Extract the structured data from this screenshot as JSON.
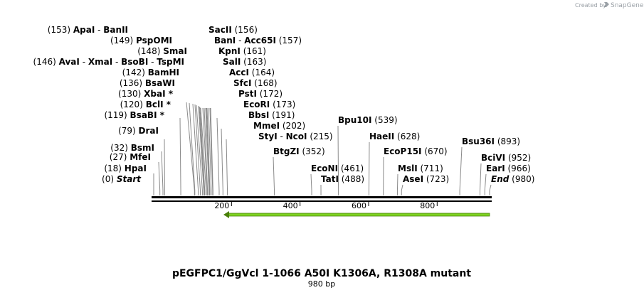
{
  "credit": {
    "prefix": "Created by",
    "brand": "SnapGene"
  },
  "title": "pEGFPC1/GgVcl 1-1066 A50I K1306A, R1308A mutant",
  "length_label": "980 bp",
  "sequence_length": 980,
  "ticks": [
    {
      "pos": 200,
      "label": "200"
    },
    {
      "pos": 400,
      "label": "400"
    },
    {
      "pos": 600,
      "label": "600"
    },
    {
      "pos": 800,
      "label": "800"
    }
  ],
  "feature": {
    "name": "green-arrow-feature",
    "start": 205,
    "end": 975,
    "direction": "reverse",
    "color": "#7ed321"
  },
  "sites": [
    {
      "names": [
        "ApaI",
        "BanII"
      ],
      "pos": "153",
      "numbers_left": true
    },
    {
      "names": [
        "PspOMI"
      ],
      "pos": "149",
      "numbers_left": true
    },
    {
      "names": [
        "SmaI"
      ],
      "pos": "148",
      "numbers_left": true
    },
    {
      "names": [
        "AvaI",
        "XmaI",
        "BsoBI",
        "TspMI"
      ],
      "pos": "146",
      "numbers_left": true
    },
    {
      "names": [
        "BamHI"
      ],
      "pos": "142",
      "numbers_left": true
    },
    {
      "names": [
        "BsaWI"
      ],
      "pos": "136",
      "numbers_left": true
    },
    {
      "names": [
        "XbaI *"
      ],
      "pos": "130",
      "numbers_left": true
    },
    {
      "names": [
        "BclI *"
      ],
      "pos": "120",
      "numbers_left": true
    },
    {
      "names": [
        "BsaBI *"
      ],
      "pos": "119",
      "numbers_left": true
    },
    {
      "names": [
        "DraI"
      ],
      "pos": "79",
      "numbers_left": true
    },
    {
      "names": [
        "BsmI"
      ],
      "pos": "32",
      "numbers_left": true
    },
    {
      "names": [
        "MfeI"
      ],
      "pos": "27",
      "numbers_left": true
    },
    {
      "names": [
        "HpaI"
      ],
      "pos": "18",
      "numbers_left": true
    },
    {
      "names": [
        "Start"
      ],
      "pos": "0",
      "numbers_left": true,
      "italic": true
    },
    {
      "names": [
        "SacII"
      ],
      "pos": "156",
      "numbers_left": false
    },
    {
      "names": [
        "BanI",
        "Acc65I"
      ],
      "pos": "157",
      "numbers_left": false
    },
    {
      "names": [
        "KpnI"
      ],
      "pos": "161",
      "numbers_left": false
    },
    {
      "names": [
        "SalI"
      ],
      "pos": "163",
      "numbers_left": false
    },
    {
      "names": [
        "AccI"
      ],
      "pos": "164",
      "numbers_left": false
    },
    {
      "names": [
        "SfcI"
      ],
      "pos": "168",
      "numbers_left": false
    },
    {
      "names": [
        "PstI"
      ],
      "pos": "172",
      "numbers_left": false
    },
    {
      "names": [
        "EcoRI"
      ],
      "pos": "173",
      "numbers_left": false
    },
    {
      "names": [
        "BbsI"
      ],
      "pos": "191",
      "numbers_left": false
    },
    {
      "names": [
        "MmeI"
      ],
      "pos": "202",
      "numbers_left": false
    },
    {
      "names": [
        "StyI",
        "NcoI"
      ],
      "pos": "215",
      "numbers_left": false
    },
    {
      "names": [
        "BtgZI"
      ],
      "pos": "352",
      "numbers_left": false
    },
    {
      "names": [
        "EcoNI"
      ],
      "pos": "461",
      "numbers_left": false
    },
    {
      "names": [
        "TatI"
      ],
      "pos": "488",
      "numbers_left": false
    },
    {
      "names": [
        "Bpu10I"
      ],
      "pos": "539",
      "numbers_left": false
    },
    {
      "names": [
        "HaeII"
      ],
      "pos": "628",
      "numbers_left": false
    },
    {
      "names": [
        "EcoP15I"
      ],
      "pos": "670",
      "numbers_left": false
    },
    {
      "names": [
        "MslI"
      ],
      "pos": "711",
      "numbers_left": false
    },
    {
      "names": [
        "AseI"
      ],
      "pos": "723",
      "numbers_left": false
    },
    {
      "names": [
        "Bsu36I"
      ],
      "pos": "893",
      "numbers_left": false
    },
    {
      "names": [
        "BciVI"
      ],
      "pos": "952",
      "numbers_left": false
    },
    {
      "names": [
        "EarI"
      ],
      "pos": "966",
      "numbers_left": false
    },
    {
      "names": [
        "End"
      ],
      "pos": "980",
      "numbers_left": false,
      "italic": true
    }
  ]
}
